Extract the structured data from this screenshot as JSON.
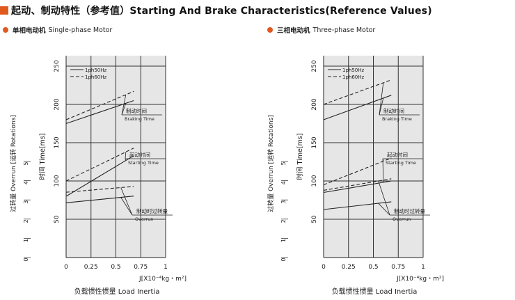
{
  "header": {
    "title": "起动、制动特性（参考值）Starting And Brake Characteristics(Reference Values)",
    "accent_color": "#e05a1e"
  },
  "panels": [
    {
      "label_cn": "单相电动机",
      "label_en": "Single-phase Motor"
    },
    {
      "label_cn": "三相电动机",
      "label_en": "Three-phase Motor"
    }
  ],
  "chart_data": [
    {
      "type": "line",
      "panel": "Single-phase Motor",
      "xlabel": "J[X10⁻⁴kg・m²]",
      "xlabel_bottom": "负载惯性惯量 Load Inertia",
      "ylabel_time": "时间 Time[ms]",
      "ylabel_overrun": "过转量 Overrun [运转 Rotations]",
      "x_ticks": [
        "0",
        "0.25",
        "0.5",
        "0.75",
        "1"
      ],
      "xlim": [
        0,
        1
      ],
      "time_ticks": [
        "50",
        "100",
        "150",
        "200",
        "250"
      ],
      "time_lim": [
        0,
        250
      ],
      "overrun_ticks": [
        "0",
        "1",
        "2",
        "3",
        "4",
        "5"
      ],
      "overrun_lim": [
        0,
        5
      ],
      "grid": true,
      "legend": {
        "placement": "top-left",
        "entries": [
          "1ph50Hz",
          "1ph60Hz"
        ]
      },
      "annotations": [
        {
          "cn": "制动时间",
          "en": "Braking Time"
        },
        {
          "cn": "起动时间",
          "en": "Starting Time"
        },
        {
          "cn": "制动时过转量",
          "en": "Overrun"
        }
      ],
      "series": [
        {
          "name": "1ph50Hz",
          "metric": "Braking Time",
          "axis": "time",
          "x": [
            0,
            0.68
          ],
          "y": [
            175,
            205
          ]
        },
        {
          "name": "1ph60Hz",
          "metric": "Braking Time",
          "axis": "time",
          "x": [
            0,
            0.68
          ],
          "y": [
            180,
            217
          ]
        },
        {
          "name": "1ph50Hz",
          "metric": "Starting Time",
          "axis": "time",
          "x": [
            0,
            0.68
          ],
          "y": [
            80,
            133
          ]
        },
        {
          "name": "1ph60Hz",
          "metric": "Starting Time",
          "axis": "time",
          "x": [
            0,
            0.68
          ],
          "y": [
            100,
            143
          ]
        },
        {
          "name": "1ph50Hz",
          "metric": "Overrun",
          "axis": "overrun",
          "x": [
            0,
            0.68
          ],
          "y": [
            2.85,
            3.2
          ]
        },
        {
          "name": "1ph60Hz",
          "metric": "Overrun",
          "axis": "overrun",
          "x": [
            0,
            0.68
          ],
          "y": [
            3.4,
            3.7
          ]
        }
      ]
    },
    {
      "type": "line",
      "panel": "Three-phase Motor",
      "xlabel": "J[X10⁻⁴kg・m²]",
      "xlabel_bottom": "负载惯性惯量 Load Inertia",
      "ylabel_time": "时间 Time[ms]",
      "ylabel_overrun": "过转量 Overrun [运转 Rotations]",
      "x_ticks": [
        "0",
        "0.25",
        "0.5",
        "0.75",
        "1"
      ],
      "xlim": [
        0,
        1
      ],
      "time_ticks": [
        "50",
        "100",
        "150",
        "200",
        "250"
      ],
      "time_lim": [
        0,
        250
      ],
      "overrun_ticks": [
        "0",
        "1",
        "2",
        "3",
        "4",
        "5"
      ],
      "overrun_lim": [
        0,
        5
      ],
      "grid": true,
      "legend": {
        "placement": "top-left",
        "entries": [
          "1ph50Hz",
          "1ph60Hz"
        ]
      },
      "annotations": [
        {
          "cn": "制动时间",
          "en": "Braking Time"
        },
        {
          "cn": "起动时间",
          "en": "Starting Time"
        },
        {
          "cn": "制动时过转量",
          "en": "Overrun"
        }
      ],
      "series": [
        {
          "name": "1ph50Hz",
          "metric": "Braking Time",
          "axis": "time",
          "x": [
            0,
            0.68
          ],
          "y": [
            180,
            212
          ]
        },
        {
          "name": "1ph60Hz",
          "metric": "Braking Time",
          "axis": "time",
          "x": [
            0,
            0.68
          ],
          "y": [
            200,
            232
          ]
        },
        {
          "name": "1ph50Hz",
          "metric": "Starting Time",
          "axis": "time",
          "x": [
            0,
            0.68
          ],
          "y": [
            85,
            100
          ]
        },
        {
          "name": "1ph60Hz",
          "metric": "Starting Time",
          "axis": "time",
          "x": [
            0,
            0.68
          ],
          "y": [
            95,
            130
          ]
        },
        {
          "name": "1ph50Hz",
          "metric": "Overrun",
          "axis": "overrun",
          "x": [
            0,
            0.68
          ],
          "y": [
            2.5,
            2.9
          ]
        },
        {
          "name": "1ph60Hz",
          "metric": "Overrun",
          "axis": "overrun",
          "x": [
            0,
            0.68
          ],
          "y": [
            3.5,
            4.1
          ]
        }
      ]
    }
  ]
}
